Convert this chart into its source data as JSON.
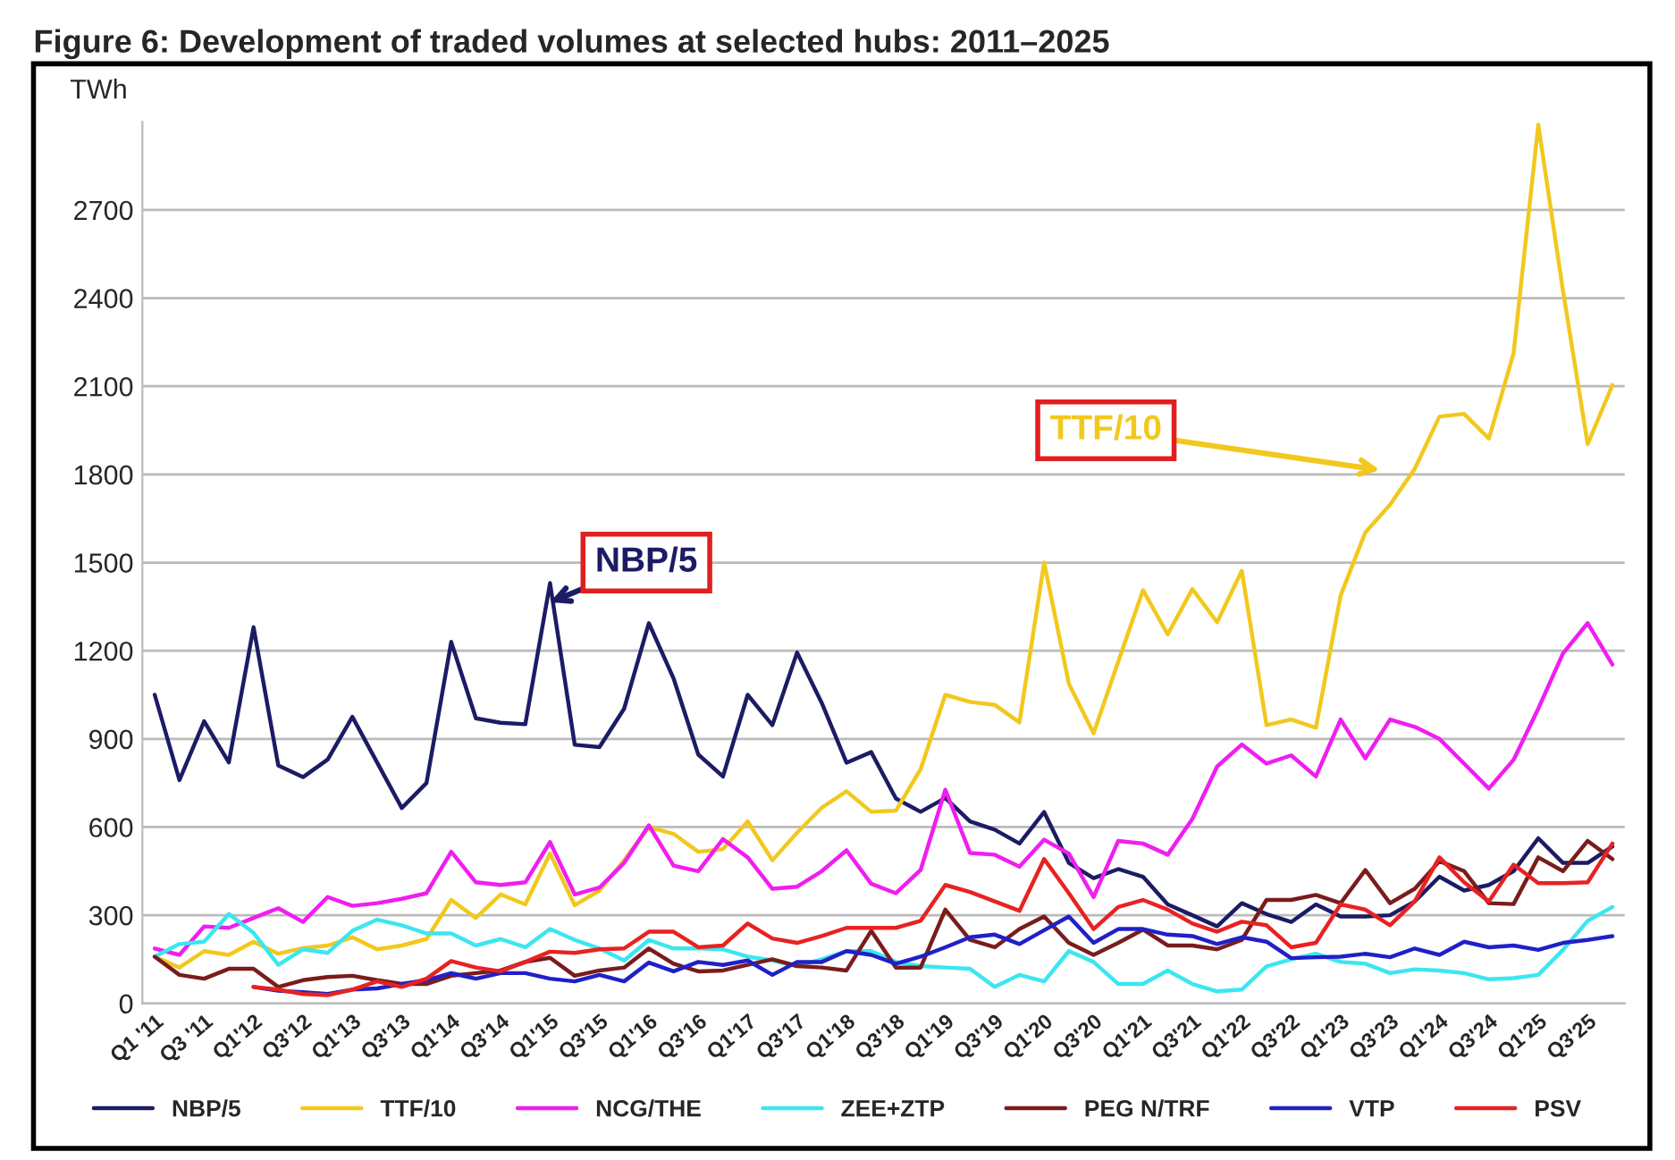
{
  "chart_data": {
    "type": "line",
    "title": "Figure 6: Development of traded volumes at selected hubs: 2011–2025",
    "ylabel": "TWh",
    "categories": [
      "Q1 '11",
      null,
      "Q3 '11",
      null,
      "Q1'12",
      null,
      "Q3'12",
      null,
      "Q1'13",
      null,
      "Q3'13",
      null,
      "Q1'14",
      null,
      "Q3'14",
      null,
      "Q1'15",
      null,
      "Q3'15",
      null,
      "Q1'16",
      null,
      "Q3'16",
      null,
      "Q1'17",
      null,
      "Q3'17",
      null,
      "Q1'18",
      null,
      "Q3'18",
      null,
      "Q1'19",
      null,
      "Q3'19",
      null,
      "Q1'20",
      null,
      "Q3'20",
      null,
      "Q1'21",
      null,
      "Q3'21",
      null,
      "Q1'22",
      null,
      "Q3'22",
      null,
      "Q1'23",
      null,
      "Q3'23",
      null,
      "Q1'24",
      null,
      "Q3'24",
      null,
      "Q1'25",
      null,
      "Q3'25",
      null
    ],
    "series": [
      {
        "name": "NBP/5",
        "color": "#1c1c64",
        "values": [
          1050,
          760,
          960,
          820,
          1280,
          810,
          770,
          830,
          975,
          820,
          665,
          750,
          1230,
          970,
          955,
          950,
          1430,
          880,
          872,
          1003,
          1294,
          1106,
          847,
          772,
          1050,
          947,
          1194,
          1022,
          819,
          855,
          697,
          652,
          699,
          619,
          591,
          544,
          651,
          478,
          426,
          457,
          431,
          337,
          300,
          262,
          341,
          304,
          277,
          337,
          296,
          296,
          300,
          347,
          431,
          384,
          403,
          450,
          562,
          478,
          478,
          534
        ]
      },
      {
        "name": "TTF/10",
        "color": "#f2c81e",
        "values": [
          159,
          122,
          178,
          165,
          210,
          169,
          188,
          197,
          225,
          184,
          197,
          219,
          352,
          291,
          371,
          337,
          510,
          334,
          384,
          487,
          600,
          577,
          516,
          525,
          619,
          487,
          581,
          666,
          722,
          652,
          656,
          797,
          1050,
          1026,
          1016,
          956,
          1500,
          1088,
          919,
          1163,
          1406,
          1256,
          1410,
          1297,
          1472,
          947,
          966,
          938,
          1388,
          1603,
          1697,
          1819,
          1997,
          2006,
          1922,
          2212,
          2990,
          2425,
          1903,
          2104
        ]
      },
      {
        "name": "NCG/THE",
        "color": "#f01ef0",
        "values": [
          187,
          165,
          262,
          257,
          291,
          324,
          277,
          362,
          332,
          341,
          356,
          375,
          516,
          412,
          403,
          412,
          549,
          371,
          394,
          478,
          606,
          469,
          450,
          559,
          497,
          390,
          397,
          450,
          521,
          407,
          375,
          454,
          727,
          512,
          506,
          465,
          557,
          510,
          362,
          553,
          544,
          506,
          628,
          806,
          881,
          816,
          844,
          772,
          966,
          834,
          966,
          941,
          900,
          816,
          731,
          829,
          1003,
          1191,
          1294,
          1153
        ]
      },
      {
        "name": "ZEE+ZTP",
        "color": "#3ce6f0",
        "values": [
          159,
          202,
          210,
          304,
          240,
          131,
          184,
          172,
          247,
          285,
          266,
          238,
          238,
          197,
          219,
          191,
          253,
          216,
          187,
          146,
          216,
          187,
          187,
          184,
          159,
          146,
          127,
          150,
          178,
          178,
          141,
          127,
          122,
          118,
          56,
          97,
          75,
          178,
          141,
          66,
          66,
          112,
          66,
          41,
          47,
          126,
          150,
          169,
          141,
          135,
          103,
          116,
          112,
          103,
          82,
          86,
          97,
          182,
          281,
          328
        ]
      },
      {
        "name": "PEG N/TRF",
        "color": "#7a1c1c",
        "values": [
          159,
          97,
          84,
          118,
          118,
          56,
          79,
          90,
          94,
          79,
          66,
          66,
          94,
          103,
          112,
          141,
          155,
          94,
          112,
          122,
          187,
          135,
          109,
          112,
          131,
          150,
          127,
          122,
          112,
          247,
          122,
          122,
          319,
          216,
          191,
          253,
          296,
          206,
          165,
          206,
          251,
          197,
          197,
          184,
          216,
          352,
          352,
          369,
          341,
          454,
          341,
          390,
          484,
          450,
          341,
          338,
          497,
          450,
          553,
          491
        ]
      },
      {
        "name": "VTP",
        "color": "#2020c8",
        "values": [
          null,
          null,
          null,
          null,
          56,
          43,
          38,
          32,
          47,
          51,
          66,
          79,
          103,
          84,
          103,
          103,
          84,
          75,
          97,
          75,
          139,
          109,
          141,
          131,
          146,
          97,
          141,
          141,
          178,
          165,
          135,
          159,
          191,
          225,
          234,
          202,
          249,
          296,
          206,
          253,
          253,
          234,
          229,
          202,
          225,
          210,
          154,
          157,
          159,
          169,
          157,
          187,
          165,
          210,
          191,
          197,
          182,
          206,
          216,
          229
        ]
      },
      {
        "name": "PSV",
        "color": "#e82222",
        "values": [
          null,
          null,
          null,
          null,
          56,
          47,
          32,
          28,
          47,
          75,
          56,
          84,
          144,
          122,
          109,
          141,
          176,
          172,
          184,
          187,
          244,
          244,
          191,
          197,
          272,
          221,
          206,
          229,
          257,
          257,
          257,
          281,
          403,
          379,
          347,
          315,
          491,
          375,
          253,
          328,
          352,
          319,
          272,
          244,
          278,
          266,
          191,
          206,
          337,
          319,
          266,
          347,
          497,
          412,
          347,
          472,
          409,
          409,
          412,
          544
        ]
      }
    ],
    "ylim": [
      0,
      3000
    ],
    "yticks": [
      0,
      300,
      600,
      900,
      1200,
      1500,
      1800,
      2100,
      2400,
      2700
    ],
    "grid": "y",
    "legend": "bottom",
    "annotations": [
      "NBP/5",
      "TTF/10"
    ]
  }
}
